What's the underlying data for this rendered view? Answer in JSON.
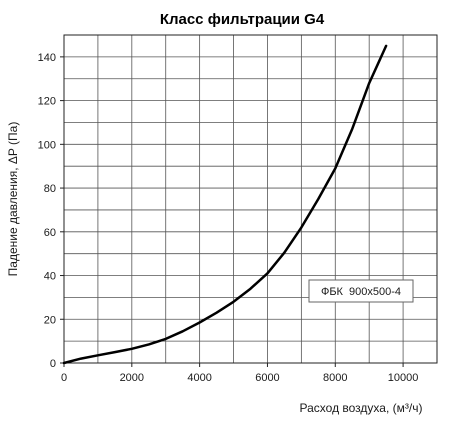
{
  "chart_data": {
    "type": "line",
    "title": "Класс фильтрации G4",
    "xlabel": "Расход воздуха, (м³/ч)",
    "ylabel": "Падение давления, ΔP (Па)",
    "xlim": [
      0,
      11000
    ],
    "ylim": [
      0,
      150
    ],
    "x_ticks": [
      0,
      2000,
      4000,
      6000,
      8000,
      10000
    ],
    "y_ticks": [
      0,
      20,
      40,
      60,
      80,
      100,
      120,
      140
    ],
    "grid": true,
    "legend_placement": "lower-right",
    "series": [
      {
        "name": "ФБК  900х500-4",
        "color": "#000000",
        "x": [
          0,
          500,
          1000,
          1500,
          2000,
          2500,
          3000,
          3500,
          4000,
          4500,
          5000,
          5500,
          6000,
          6500,
          7000,
          7500,
          8000,
          8500,
          9000,
          9500
        ],
        "y": [
          0,
          2,
          3.5,
          5,
          6.5,
          8.5,
          11,
          14.5,
          18.5,
          23,
          28,
          34,
          41,
          50.5,
          62,
          75,
          89,
          107,
          128,
          145
        ]
      }
    ]
  }
}
